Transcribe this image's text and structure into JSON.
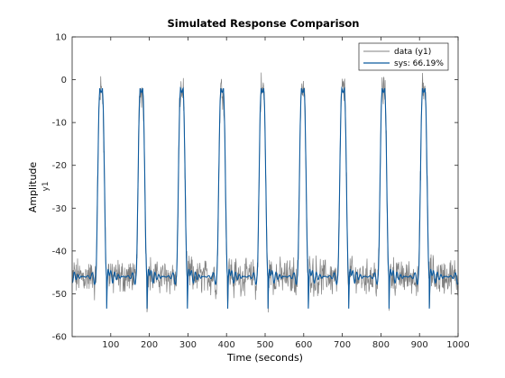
{
  "chart_data": {
    "type": "line",
    "title": "Simulated Response Comparison",
    "xlabel": "Time (seconds)",
    "ylabel": "Amplitude",
    "channel_label": "y1",
    "xlim": [
      0,
      1000
    ],
    "ylim": [
      -60,
      10
    ],
    "xticks": [
      100,
      200,
      300,
      400,
      500,
      600,
      700,
      800,
      900,
      1000
    ],
    "yticks": [
      10,
      0,
      -10,
      -20,
      -30,
      -40,
      -50,
      -60
    ],
    "grid": false,
    "legend_position": "top-right",
    "series": [
      {
        "name": "data (y1)",
        "color": "#808080",
        "period": 104.5,
        "first_peak": 75,
        "high": -3,
        "low": -46,
        "noise": 3.2
      },
      {
        "name": "sys: 66.19%",
        "color": "#0c5a9e",
        "period": 104.5,
        "first_peak": 75,
        "high": -3,
        "low": -46,
        "noise": 0
      }
    ]
  }
}
